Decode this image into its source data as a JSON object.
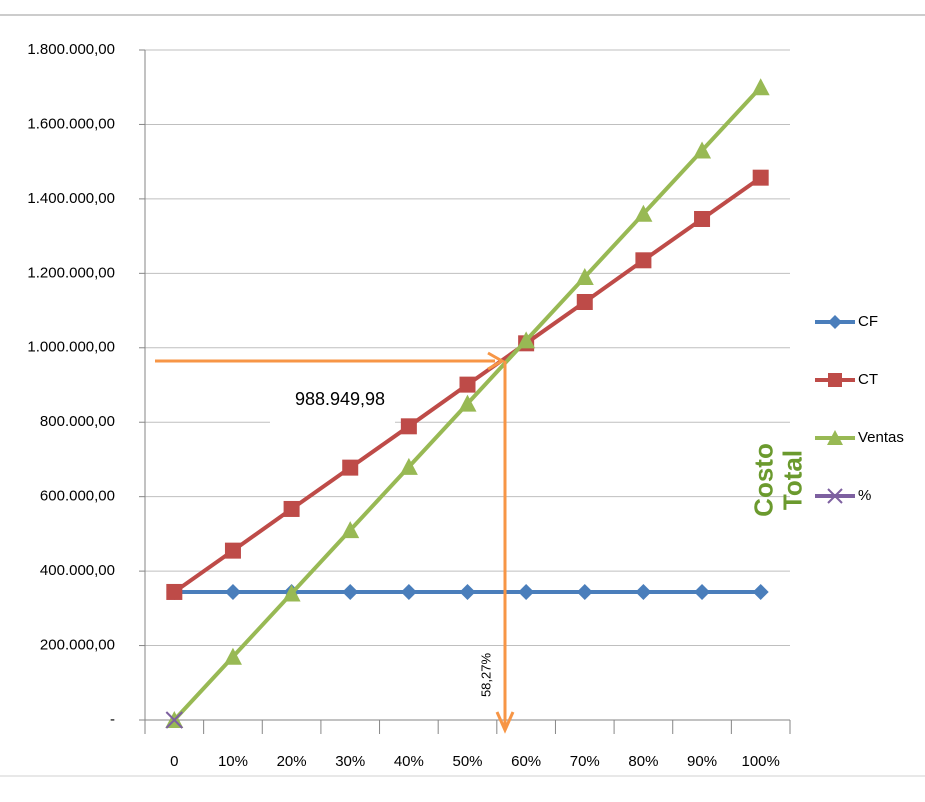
{
  "chart_data": {
    "type": "line",
    "categories": [
      "0",
      "10%",
      "20%",
      "30%",
      "40%",
      "50%",
      "60%",
      "70%",
      "80%",
      "90%",
      "100%"
    ],
    "series": [
      {
        "name": "CF",
        "color": "#4a7ebb",
        "marker": "diamond",
        "values": [
          344000,
          344000,
          344000,
          344000,
          344000,
          344000,
          344000,
          344000,
          344000,
          344000,
          344000
        ]
      },
      {
        "name": "CT",
        "color": "#be4b48",
        "marker": "square",
        "values": [
          344000,
          455000,
          567000,
          678000,
          789000,
          901000,
          1012000,
          1123000,
          1235000,
          1346000,
          1457000
        ]
      },
      {
        "name": "Ventas",
        "color": "#98b954",
        "marker": "triangle",
        "values": [
          0,
          170000,
          340000,
          510000,
          680000,
          850000,
          1020000,
          1190000,
          1360000,
          1530000,
          1700000
        ]
      },
      {
        "name": "%",
        "color": "#7d60a0",
        "marker": "x",
        "values": [
          0,
          null,
          null,
          null,
          null,
          null,
          null,
          null,
          null,
          null,
          null
        ]
      }
    ],
    "ylim": [
      0,
      1800000
    ],
    "yticks": [
      {
        "value": 0,
        "label": "-"
      },
      {
        "value": 200000,
        "label": "200.000,00"
      },
      {
        "value": 400000,
        "label": "400.000,00"
      },
      {
        "value": 600000,
        "label": "600.000,00"
      },
      {
        "value": 800000,
        "label": "800.000,00"
      },
      {
        "value": 1000000,
        "label": "1.000.000,00"
      },
      {
        "value": 1200000,
        "label": "1.200.000,00"
      },
      {
        "value": 1400000,
        "label": "1.400.000,00"
      },
      {
        "value": 1600000,
        "label": "1.600.000,00"
      },
      {
        "value": 1800000,
        "label": "1.800.000,00"
      }
    ],
    "grid": true,
    "legend": "right",
    "annotations": [
      "988.949,98",
      "58,27%",
      "Costo Total"
    ]
  }
}
